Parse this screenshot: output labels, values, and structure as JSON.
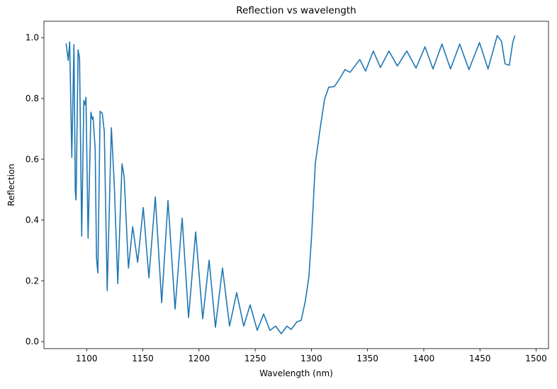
{
  "chart_data": {
    "type": "line",
    "title": "Reflection vs wavelength",
    "x_label": "Wavelength (nm)",
    "y_label": "Reflection",
    "x": [
      1081.7,
      1083.6,
      1084.9,
      1086.8,
      1088.7,
      1089.9,
      1090.6,
      1092.4,
      1093.7,
      1095.6,
      1097.5,
      1098.7,
      1099.4,
      1101.3,
      1103.8,
      1105,
      1105.7,
      1107.6,
      1108.8,
      1110,
      1112,
      1113.9,
      1115.7,
      1118.3,
      1122,
      1124.6,
      1127.7,
      1131.5,
      1133.4,
      1137.2,
      1141,
      1145.4,
      1150.4,
      1155.4,
      1161.1,
      1166.8,
      1172.4,
      1178.7,
      1185,
      1190.7,
      1197,
      1203.3,
      1209,
      1214.6,
      1220.9,
      1227.2,
      1233.5,
      1239.8,
      1245.5,
      1251.8,
      1257.5,
      1263.1,
      1268.2,
      1273.2,
      1278.2,
      1282,
      1287.1,
      1290.9,
      1294.6,
      1297.8,
      1300.3,
      1303.5,
      1307.9,
      1311.7,
      1315.4,
      1320.5,
      1325.5,
      1329.9,
      1334.4,
      1343.1,
      1348.2,
      1355.1,
      1361.4,
      1369,
      1376.5,
      1384.9,
      1393.1,
      1401.1,
      1408.2,
      1416.2,
      1423.8,
      1432,
      1440.2,
      1449.6,
      1457.2,
      1465.4,
      1469.2,
      1472.3,
      1476.1,
      1479.2,
      1481.1
    ],
    "series": [
      {
        "name": "Reflection",
        "color": "#1f77b4",
        "values": [
          0.981,
          0.925,
          0.986,
          0.606,
          0.977,
          0.494,
          0.466,
          0.96,
          0.932,
          0.347,
          0.793,
          0.779,
          0.804,
          0.34,
          0.755,
          0.732,
          0.739,
          0.634,
          0.273,
          0.226,
          0.758,
          0.751,
          0.692,
          0.168,
          0.704,
          0.517,
          0.191,
          0.585,
          0.541,
          0.242,
          0.378,
          0.261,
          0.441,
          0.21,
          0.476,
          0.128,
          0.464,
          0.107,
          0.406,
          0.079,
          0.361,
          0.075,
          0.268,
          0.047,
          0.242,
          0.051,
          0.161,
          0.051,
          0.121,
          0.037,
          0.091,
          0.037,
          0.051,
          0.026,
          0.051,
          0.04,
          0.065,
          0.07,
          0.133,
          0.214,
          0.354,
          0.587,
          0.704,
          0.797,
          0.837,
          0.839,
          0.867,
          0.895,
          0.886,
          0.928,
          0.89,
          0.956,
          0.902,
          0.956,
          0.907,
          0.956,
          0.9,
          0.97,
          0.897,
          0.979,
          0.897,
          0.979,
          0.895,
          0.984,
          0.897,
          1.007,
          0.988,
          0.914,
          0.909,
          0.984,
          1.007
        ]
      }
    ],
    "xlim": [
      1062,
      1511
    ],
    "ylim": [
      -0.023,
      1.054
    ],
    "xticks": [
      1100,
      1150,
      1200,
      1250,
      1300,
      1350,
      1400,
      1450,
      1500
    ],
    "yticks": [
      {
        "value": 0,
        "label": "0.0"
      },
      {
        "value": 0.2,
        "label": "0.2"
      },
      {
        "value": 0.4,
        "label": "0.4"
      },
      {
        "value": 0.6,
        "label": "0.6"
      },
      {
        "value": 0.8,
        "label": "0.8"
      },
      {
        "value": 1,
        "label": "1.0"
      }
    ],
    "grid": false
  }
}
